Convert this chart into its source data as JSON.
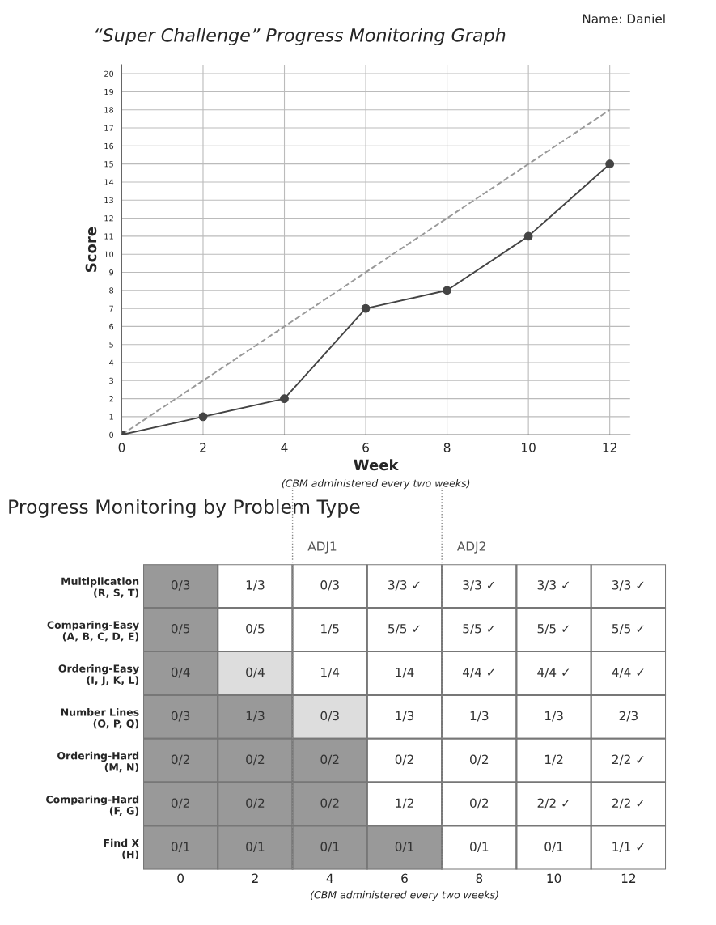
{
  "chart_data": [
    {
      "type": "line",
      "title": "“Super Challenge” Progress Monitoring Graph",
      "xlabel": "Week",
      "ylabel": "Score",
      "annotations": [
        "Name: Daniel",
        "(CBM administered every two weeks)"
      ],
      "series": [
        {
          "type": "line",
          "color": "#999999",
          "line_style": "dashed",
          "marker": "none",
          "x": [
            0,
            12
          ],
          "values": [
            0,
            18
          ]
        },
        {
          "type": "line",
          "color": "#444444",
          "line_style": "solid",
          "marker": "circle",
          "x": [
            0,
            2,
            4,
            6,
            8,
            10,
            12
          ],
          "values": [
            0,
            1,
            2,
            7,
            8,
            11,
            15
          ]
        }
      ],
      "xlim": [
        0,
        12.5
      ],
      "xticks": [
        0,
        2,
        4,
        6,
        8,
        10,
        12
      ],
      "ylim": [
        0,
        20.5
      ],
      "yticks": [
        0,
        1,
        2,
        3,
        4,
        5,
        6,
        7,
        8,
        9,
        10,
        11,
        12,
        13,
        14,
        15,
        16,
        17,
        18,
        19,
        20
      ],
      "grid": true
    },
    {
      "type": "heatmap",
      "title": "Progress Monitoring by Problem Type",
      "annotations": [
        "(CBM administered every two weeks)",
        "ADJ1",
        "ADJ2"
      ],
      "cells": [
        [
          null,
          null,
          null,
          null,
          null,
          null,
          null
        ],
        [
          null,
          null,
          null,
          null,
          null,
          null,
          null
        ],
        [
          null,
          null,
          null,
          null,
          null,
          null,
          null
        ],
        [
          null,
          null,
          null,
          null,
          null,
          null,
          null
        ],
        [
          null,
          null,
          null,
          null,
          null,
          null,
          null
        ],
        [
          null,
          null,
          null,
          null,
          null,
          null,
          null
        ],
        [
          null,
          null,
          null,
          null,
          null,
          null,
          null
        ]
      ],
      "categories": [
        "0",
        "2",
        "4",
        "6",
        "8",
        "10",
        "12"
      ],
      "y_categories": [
        "Multiplication\n(R, S, T)",
        "Comparing-Easy\n(A, B, C, D, E)",
        "Ordering-Easy\n(I, J, K, L)",
        "Number Lines\n(O, P, Q)",
        "Ordering-Hard\n(M, N)",
        "Comparing-Hard\n(F, G)",
        "Find X\n(H)"
      ],
      "cell_labels": [
        [
          "0/3",
          "1/3",
          "0/3",
          "3/3 ✓",
          "3/3 ✓",
          "3/3 ✓",
          "3/3 ✓"
        ],
        [
          "0/5",
          "0/5",
          "1/5",
          "5/5 ✓",
          "5/5 ✓",
          "5/5 ✓",
          "5/5 ✓"
        ],
        [
          "0/4",
          "0/4",
          "1/4",
          "1/4",
          "4/4 ✓",
          "4/4 ✓",
          "4/4 ✓"
        ],
        [
          "0/3",
          "1/3",
          "0/3",
          "1/3",
          "1/3",
          "1/3",
          "2/3"
        ],
        [
          "0/2",
          "0/2",
          "0/2",
          "0/2",
          "0/2",
          "1/2",
          "2/2 ✓"
        ],
        [
          "0/2",
          "0/2",
          "0/2",
          "1/2",
          "0/2",
          "2/2 ✓",
          "2/2 ✓"
        ],
        [
          "0/1",
          "0/1",
          "0/1",
          "0/1",
          "0/1",
          "0/1",
          "1/1 ✓"
        ]
      ],
      "colors": [
        [
          "#999999",
          "#ffffff",
          "#ffffff",
          "#ffffff",
          "#ffffff",
          "#ffffff",
          "#ffffff"
        ],
        [
          "#999999",
          "#ffffff",
          "#ffffff",
          "#ffffff",
          "#ffffff",
          "#ffffff",
          "#ffffff"
        ],
        [
          "#999999",
          "#dddddd",
          "#ffffff",
          "#ffffff",
          "#ffffff",
          "#ffffff",
          "#ffffff"
        ],
        [
          "#999999",
          "#999999",
          "#dddddd",
          "#ffffff",
          "#ffffff",
          "#ffffff",
          "#ffffff"
        ],
        [
          "#999999",
          "#999999",
          "#999999",
          "#ffffff",
          "#ffffff",
          "#ffffff",
          "#ffffff"
        ],
        [
          "#999999",
          "#999999",
          "#999999",
          "#ffffff",
          "#ffffff",
          "#ffffff",
          "#ffffff"
        ],
        [
          "#999999",
          "#999999",
          "#999999",
          "#999999",
          "#ffffff",
          "#ffffff",
          "#ffffff"
        ]
      ]
    }
  ]
}
